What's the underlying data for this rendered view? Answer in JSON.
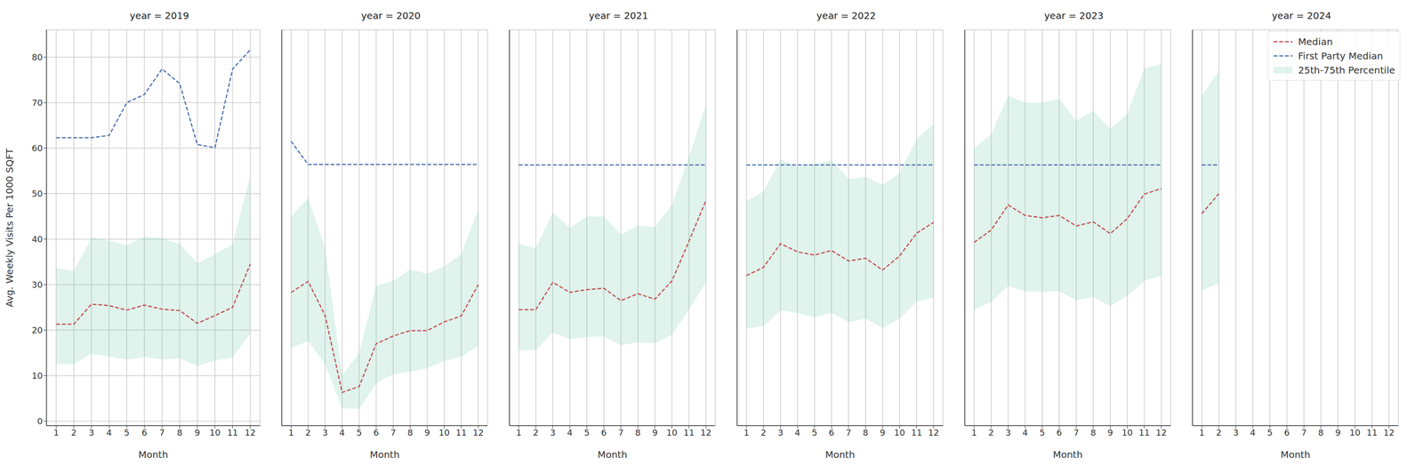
{
  "chart_data": [
    {
      "type": "line",
      "title": "year = 2019",
      "x_label": "Month",
      "y_label": "Avg. Weekly Visits Per 1000 SQFT",
      "x": [
        1,
        2,
        3,
        4,
        5,
        6,
        7,
        8,
        9,
        10,
        11,
        12
      ],
      "xlim": [
        0.45,
        12.55
      ],
      "xticks": [
        1,
        2,
        3,
        4,
        5,
        6,
        7,
        8,
        9,
        10,
        11,
        12
      ],
      "ylim": [
        -1,
        86
      ],
      "yticks": [
        0,
        10,
        20,
        30,
        40,
        50,
        60,
        70,
        80
      ],
      "grid": true,
      "series": [
        {
          "name": "Median",
          "type": "line",
          "color": "#c44e52",
          "line_style": "dashed",
          "values": [
            21.3,
            21.3,
            25.7,
            25.4,
            24.4,
            25.5,
            24.6,
            24.3,
            21.5,
            23.2,
            25,
            34.5
          ]
        },
        {
          "name": "First Party Median",
          "type": "line",
          "color": "#4c72b0",
          "line_style": "dashed",
          "values": [
            62.3,
            62.3,
            62.3,
            62.8,
            70,
            71.8,
            77.4,
            74.2,
            60.8,
            60.1,
            77.4,
            81.6
          ]
        },
        {
          "name": "25th-75th Percentile",
          "type": "area",
          "color": "#66c2a5",
          "lower": [
            12.6,
            12.5,
            14.8,
            14.2,
            13.5,
            14.1,
            13.5,
            13.8,
            12.1,
            13.3,
            14,
            19.3
          ],
          "upper": [
            33.7,
            33,
            40.3,
            39.7,
            38.7,
            40.5,
            40.2,
            38.9,
            34.7,
            36.7,
            38.8,
            54
          ]
        }
      ]
    },
    {
      "type": "line",
      "title": "year = 2020",
      "x_label": "Month",
      "tick_labels": "x",
      "x": [
        1,
        2,
        3,
        4,
        5,
        6,
        7,
        8,
        9,
        10,
        11,
        12
      ],
      "xlim": [
        0.45,
        12.55
      ],
      "xticks": [
        1,
        2,
        3,
        4,
        5,
        6,
        7,
        8,
        9,
        10,
        11,
        12
      ],
      "ylim": [
        -1,
        86
      ],
      "yticks": [
        0,
        10,
        20,
        30,
        40,
        50,
        60,
        70,
        80
      ],
      "grid": true,
      "series": [
        {
          "name": "Median",
          "type": "line",
          "color": "#c44e52",
          "line_style": "dashed",
          "values": [
            28.3,
            30.7,
            23.2,
            6.3,
            7.6,
            17,
            18.7,
            19.9,
            19.9,
            21.8,
            23.1,
            30
          ]
        },
        {
          "name": "First Party Median",
          "type": "line",
          "color": "#4c72b0",
          "line_style": "dashed",
          "values": [
            61.5,
            56.4,
            56.4,
            56.4,
            56.4,
            56.4,
            56.4,
            56.4,
            56.4,
            56.4,
            56.4,
            56.4
          ]
        },
        {
          "name": "25th-75th Percentile",
          "type": "area",
          "color": "#66c2a5",
          "lower": [
            16,
            17.6,
            12.5,
            2.8,
            2.7,
            8.4,
            10.3,
            10.9,
            11.6,
            13.2,
            14.2,
            16.5
          ],
          "upper": [
            45,
            49,
            38,
            10,
            15,
            29.8,
            30.8,
            33.3,
            32.4,
            34,
            36.7,
            46.5
          ]
        }
      ]
    },
    {
      "type": "line",
      "title": "year = 2021",
      "x_label": "Month",
      "tick_labels": "x",
      "x": [
        1,
        2,
        3,
        4,
        5,
        6,
        7,
        8,
        9,
        10,
        11,
        12
      ],
      "xlim": [
        0.45,
        12.55
      ],
      "xticks": [
        1,
        2,
        3,
        4,
        5,
        6,
        7,
        8,
        9,
        10,
        11,
        12
      ],
      "ylim": [
        -1,
        86
      ],
      "yticks": [
        0,
        10,
        20,
        30,
        40,
        50,
        60,
        70,
        80
      ],
      "grid": true,
      "series": [
        {
          "name": "Median",
          "type": "line",
          "color": "#c44e52",
          "line_style": "dashed",
          "values": [
            24.5,
            24.5,
            30.5,
            28.3,
            28.9,
            29.2,
            26.5,
            28,
            26.8,
            30.8,
            39.5,
            48.5
          ]
        },
        {
          "name": "First Party Median",
          "type": "line",
          "color": "#4c72b0",
          "line_style": "dashed",
          "values": [
            56.3,
            56.3,
            56.3,
            56.3,
            56.3,
            56.3,
            56.3,
            56.3,
            56.3,
            56.3,
            56.3,
            56.3
          ]
        },
        {
          "name": "25th-75th Percentile",
          "type": "area",
          "color": "#66c2a5",
          "lower": [
            15.6,
            15.6,
            19.5,
            18,
            18.5,
            18.6,
            16.7,
            17.3,
            17.1,
            19,
            24.5,
            30.5
          ],
          "upper": [
            38.9,
            38,
            45.8,
            42.5,
            45,
            45,
            41,
            43,
            42.6,
            47.5,
            58,
            69.5
          ]
        }
      ]
    },
    {
      "type": "line",
      "title": "year = 2022",
      "x_label": "Month",
      "tick_labels": "x",
      "x": [
        1,
        2,
        3,
        4,
        5,
        6,
        7,
        8,
        9,
        10,
        11,
        12
      ],
      "xlim": [
        0.45,
        12.55
      ],
      "xticks": [
        1,
        2,
        3,
        4,
        5,
        6,
        7,
        8,
        9,
        10,
        11,
        12
      ],
      "ylim": [
        -1,
        86
      ],
      "yticks": [
        0,
        10,
        20,
        30,
        40,
        50,
        60,
        70,
        80
      ],
      "grid": true,
      "series": [
        {
          "name": "Median",
          "type": "line",
          "color": "#c44e52",
          "line_style": "dashed",
          "values": [
            32,
            33.8,
            39,
            37.2,
            36.5,
            37.5,
            35.2,
            35.8,
            33.2,
            36.3,
            41.3,
            43.7
          ]
        },
        {
          "name": "First Party Median",
          "type": "line",
          "color": "#4c72b0",
          "line_style": "dashed",
          "values": [
            56.3,
            56.3,
            56.3,
            56.3,
            56.3,
            56.3,
            56.3,
            56.3,
            56.3,
            56.3,
            56.3,
            56.3
          ]
        },
        {
          "name": "25th-75th Percentile",
          "type": "area",
          "color": "#66c2a5",
          "lower": [
            20.3,
            20.9,
            24.3,
            23.8,
            22.8,
            23.8,
            21.8,
            22.5,
            20.5,
            22.5,
            26.3,
            27.1
          ],
          "upper": [
            48.3,
            50.5,
            57.5,
            56,
            56.5,
            57.3,
            53.2,
            53.7,
            51.9,
            54.5,
            62,
            65.3
          ]
        }
      ]
    },
    {
      "type": "line",
      "title": "year = 2023",
      "x_label": "Month",
      "tick_labels": "x",
      "x": [
        1,
        2,
        3,
        4,
        5,
        6,
        7,
        8,
        9,
        10,
        11,
        12
      ],
      "xlim": [
        0.45,
        12.55
      ],
      "xticks": [
        1,
        2,
        3,
        4,
        5,
        6,
        7,
        8,
        9,
        10,
        11,
        12
      ],
      "ylim": [
        -1,
        86
      ],
      "yticks": [
        0,
        10,
        20,
        30,
        40,
        50,
        60,
        70,
        80
      ],
      "grid": true,
      "series": [
        {
          "name": "Median",
          "type": "line",
          "color": "#c44e52",
          "line_style": "dashed",
          "values": [
            39.3,
            42,
            47.5,
            45.2,
            44.7,
            45.2,
            42.9,
            43.8,
            41.2,
            44.5,
            49.9,
            51.1
          ]
        },
        {
          "name": "First Party Median",
          "type": "line",
          "color": "#4c72b0",
          "line_style": "dashed",
          "values": [
            56.3,
            56.3,
            56.3,
            56.3,
            56.3,
            56.3,
            56.3,
            56.3,
            56.3,
            56.3,
            56.3,
            56.3
          ]
        },
        {
          "name": "25th-75th Percentile",
          "type": "area",
          "color": "#66c2a5",
          "lower": [
            24.5,
            26.2,
            29.7,
            28.5,
            28.4,
            28.6,
            26.6,
            27.3,
            25.3,
            27.5,
            30.8,
            32
          ],
          "upper": [
            60,
            63,
            71.5,
            70,
            70,
            70.8,
            66,
            68.2,
            64.2,
            67.5,
            77.5,
            78.5
          ]
        }
      ]
    },
    {
      "type": "line",
      "title": "year = 2024",
      "x_label": "Month",
      "tick_labels": "x",
      "legend": "upper right",
      "x": [
        1,
        2,
        3,
        4,
        5,
        6,
        7,
        8,
        9,
        10,
        11,
        12
      ],
      "xlim": [
        0.45,
        12.55
      ],
      "xticks": [
        1,
        2,
        3,
        4,
        5,
        6,
        7,
        8,
        9,
        10,
        11,
        12
      ],
      "ylim": [
        -1,
        86
      ],
      "yticks": [
        0,
        10,
        20,
        30,
        40,
        50,
        60,
        70,
        80
      ],
      "grid": true,
      "series": [
        {
          "name": "Median",
          "type": "line",
          "color": "#c44e52",
          "line_style": "dashed",
          "values": [
            45.6,
            50,
            null,
            null,
            null,
            null,
            null,
            null,
            null,
            null,
            null,
            null
          ]
        },
        {
          "name": "First Party Median",
          "type": "line",
          "color": "#4c72b0",
          "line_style": "dashed",
          "values": [
            56.3,
            56.3,
            null,
            null,
            null,
            null,
            null,
            null,
            null,
            null,
            null,
            null
          ]
        },
        {
          "name": "25th-75th Percentile",
          "type": "area",
          "color": "#66c2a5",
          "lower": [
            28.7,
            30.4,
            null,
            null,
            null,
            null,
            null,
            null,
            null,
            null,
            null,
            null
          ],
          "upper": [
            71.5,
            77,
            null,
            null,
            null,
            null,
            null,
            null,
            null,
            null,
            null,
            null
          ]
        }
      ]
    }
  ]
}
